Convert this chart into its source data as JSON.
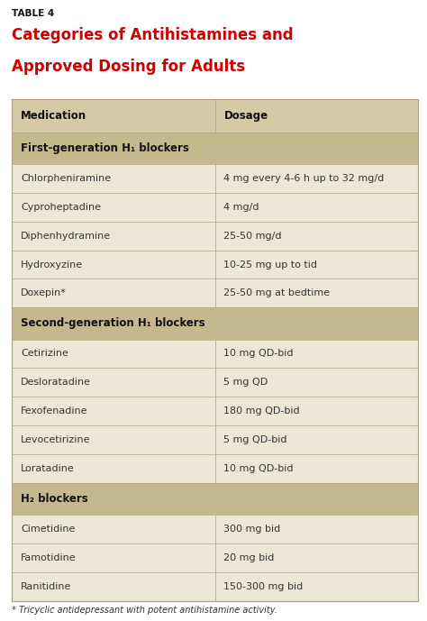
{
  "table_label": "TABLE 4",
  "title_line1": "Categories of Antihistamines and",
  "title_line2": "Approved Dosing for Adults",
  "title_color": "#cc0000",
  "table_label_color": "#111111",
  "header_bg": "#d5c9a8",
  "section_bg": "#c5b88e",
  "row_bg": "#ede8d5",
  "col_split": 0.5,
  "border_color": "#b0a080",
  "text_color": "#333333",
  "footnote": "* Tricyclic antidepressant with potent antihistamine activity.",
  "rows": [
    {
      "type": "header",
      "col1": "Medication",
      "col2": "Dosage"
    },
    {
      "type": "section",
      "col1": "First-generation H₁ blockers",
      "col2": ""
    },
    {
      "type": "data",
      "col1": "Chlorpheniramine",
      "col2": "4 mg every 4-6 h up to 32 mg/d"
    },
    {
      "type": "data",
      "col1": "Cyproheptadine",
      "col2": "4 mg/d"
    },
    {
      "type": "data",
      "col1": "Diphenhydramine",
      "col2": "25-50 mg/d"
    },
    {
      "type": "data",
      "col1": "Hydroxyzine",
      "col2": "10-25 mg up to tid"
    },
    {
      "type": "data",
      "col1": "Doxepin*",
      "col2": "25-50 mg at bedtime"
    },
    {
      "type": "section",
      "col1": "Second-generation H₁ blockers",
      "col2": ""
    },
    {
      "type": "data",
      "col1": "Cetirizine",
      "col2": "10 mg QD-bid"
    },
    {
      "type": "data",
      "col1": "Desloratadine",
      "col2": "5 mg QD"
    },
    {
      "type": "data",
      "col1": "Fexofenadine",
      "col2": "180 mg QD-bid"
    },
    {
      "type": "data",
      "col1": "Levocetirizine",
      "col2": "5 mg QD-bid"
    },
    {
      "type": "data",
      "col1": "Loratadine",
      "col2": "10 mg QD-bid"
    },
    {
      "type": "section",
      "col1": "H₂ blockers",
      "col2": ""
    },
    {
      "type": "data",
      "col1": "Cimetidine",
      "col2": "300 mg bid"
    },
    {
      "type": "data",
      "col1": "Famotidine",
      "col2": "20 mg bid"
    },
    {
      "type": "data",
      "col1": "Ranitidine",
      "col2": "150-300 mg bid"
    }
  ],
  "fig_width": 4.74,
  "fig_height": 6.89,
  "dpi": 100
}
